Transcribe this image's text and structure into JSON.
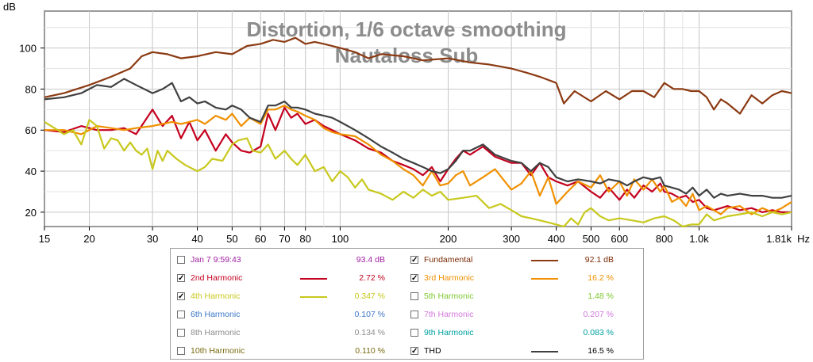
{
  "colors": {
    "fundamental": "#8b3a12",
    "h2": "#c4001e",
    "h3": "#f09000",
    "h4": "#c8c81e",
    "h5": "#7fc832",
    "h6": "#3c78c8",
    "h7": "#d278dc",
    "h8": "#8c8c8c",
    "h9": "#00a0a0",
    "h10": "#7a6a10",
    "thd": "#404040",
    "timestamp": "#a020a0"
  },
  "chart_data": {
    "type": "line",
    "title": "Distortion, 1/6 octave smoothing",
    "subtitle": "Nautaloss Sub",
    "ylabel": "dB",
    "xunit": "Hz",
    "xscale": "log",
    "xlim": [
      15,
      1810
    ],
    "ylim": [
      13,
      118
    ],
    "grid": true,
    "x_tick_labels": [
      "15",
      "20",
      "30",
      "40",
      "50",
      "60",
      "70",
      "80",
      "100",
      "200",
      "300",
      "400",
      "500",
      "600",
      "800",
      "1.0k",
      "1.81k"
    ],
    "x_tick_values": [
      15,
      20,
      30,
      40,
      50,
      60,
      70,
      80,
      100,
      200,
      300,
      400,
      500,
      600,
      800,
      1000,
      1810
    ],
    "y_tick_labels": [
      "20",
      "40",
      "60",
      "80",
      "100"
    ],
    "y_tick_values": [
      20,
      40,
      60,
      80,
      100
    ],
    "series": [
      {
        "name": "Fundamental",
        "color_key": "fundamental",
        "x": [
          15,
          17,
          20,
          23,
          26,
          28,
          30,
          33,
          36,
          40,
          45,
          50,
          55,
          60,
          65,
          70,
          75,
          80,
          85,
          90,
          100,
          110,
          120,
          130,
          150,
          170,
          200,
          230,
          260,
          300,
          330,
          360,
          400,
          420,
          450,
          500,
          550,
          600,
          650,
          700,
          750,
          800,
          850,
          900,
          950,
          1000,
          1050,
          1100,
          1150,
          1200,
          1300,
          1400,
          1500,
          1600,
          1700,
          1810
        ],
        "y": [
          76,
          78,
          82,
          86,
          90,
          96,
          98,
          97,
          95,
          96,
          98,
          97,
          101,
          102,
          104,
          103,
          105,
          102,
          103,
          102,
          100,
          98,
          95,
          97,
          96,
          94,
          95,
          93,
          92,
          90,
          88,
          86,
          83,
          73,
          79,
          74,
          79,
          75,
          79,
          79,
          76,
          83,
          80,
          80,
          79,
          79,
          76,
          70,
          75,
          73,
          68,
          77,
          73,
          77,
          79,
          78
        ]
      },
      {
        "name": "2nd Harmonic",
        "color_key": "h2",
        "x": [
          15,
          17,
          19,
          21,
          23,
          25,
          27,
          30,
          32,
          34,
          36,
          38,
          40,
          42,
          45,
          48,
          50,
          53,
          56,
          60,
          63,
          66,
          70,
          73,
          76,
          80,
          85,
          90,
          95,
          100,
          110,
          120,
          130,
          140,
          150,
          160,
          170,
          180,
          190,
          200,
          210,
          220,
          230,
          250,
          270,
          300,
          320,
          340,
          360,
          380,
          400,
          430,
          460,
          500,
          530,
          560,
          600,
          630,
          660,
          700,
          740,
          780,
          800,
          840,
          880,
          920,
          960,
          1000,
          1050,
          1100,
          1150,
          1200,
          1300,
          1400,
          1500,
          1600,
          1700,
          1810
        ],
        "y": [
          60,
          59,
          62,
          60,
          60,
          61,
          58,
          70,
          62,
          67,
          56,
          64,
          55,
          60,
          50,
          58,
          54,
          50,
          49,
          52,
          68,
          60,
          71,
          66,
          68,
          63,
          65,
          62,
          60,
          58,
          55,
          51,
          49,
          45,
          43,
          41,
          38,
          42,
          35,
          41,
          46,
          50,
          48,
          52,
          47,
          44,
          44,
          38,
          44,
          37,
          35,
          33,
          35,
          30,
          27,
          32,
          26,
          31,
          27,
          33,
          30,
          34,
          30,
          29,
          27,
          28,
          25,
          26,
          22,
          21,
          22,
          23,
          21,
          22,
          20,
          21,
          20,
          20
        ]
      },
      {
        "name": "3rd Harmonic",
        "color_key": "h3",
        "x": [
          15,
          17,
          19,
          21,
          23,
          25,
          27,
          30,
          32,
          34,
          36,
          38,
          40,
          42,
          45,
          48,
          50,
          53,
          56,
          60,
          63,
          66,
          70,
          73,
          76,
          80,
          85,
          90,
          95,
          100,
          110,
          120,
          130,
          140,
          150,
          160,
          170,
          180,
          190,
          200,
          210,
          220,
          230,
          250,
          270,
          300,
          320,
          340,
          360,
          380,
          400,
          430,
          460,
          500,
          530,
          560,
          600,
          630,
          660,
          700,
          740,
          780,
          800,
          840,
          880,
          920,
          960,
          1000,
          1050,
          1100,
          1150,
          1200,
          1300,
          1400,
          1500,
          1600,
          1700,
          1810
        ],
        "y": [
          60,
          60,
          58,
          62,
          61,
          60,
          61,
          62,
          63,
          64,
          63,
          64,
          65,
          63,
          67,
          65,
          68,
          62,
          66,
          63,
          70,
          70,
          72,
          70,
          69,
          67,
          65,
          61,
          59,
          58,
          57,
          53,
          48,
          45,
          41,
          38,
          33,
          40,
          33,
          34,
          38,
          40,
          33,
          37,
          41,
          31,
          34,
          40,
          28,
          37,
          24,
          30,
          35,
          32,
          38,
          30,
          35,
          28,
          36,
          31,
          36,
          30,
          33,
          25,
          27,
          23,
          29,
          21,
          23,
          21,
          19,
          22,
          23,
          19,
          22,
          20,
          22,
          25
        ]
      },
      {
        "name": "4th Harmonic",
        "color_key": "h4",
        "x": [
          15,
          16,
          17,
          18,
          19,
          20,
          21,
          22,
          23,
          24,
          25,
          26,
          27,
          28,
          29,
          30,
          31,
          32,
          33,
          35,
          37,
          40,
          42,
          44,
          47,
          50,
          52,
          55,
          57,
          60,
          63,
          66,
          70,
          73,
          76,
          80,
          85,
          90,
          95,
          100,
          105,
          110,
          115,
          120,
          130,
          140,
          150,
          160,
          170,
          180,
          190,
          200,
          220,
          240,
          260,
          280,
          300,
          320,
          340,
          360,
          380,
          400,
          420,
          440,
          460,
          480,
          500,
          530,
          560,
          600,
          650,
          700,
          750,
          800,
          850,
          900,
          950,
          1000,
          1050,
          1100,
          1200,
          1300,
          1400,
          1500,
          1600,
          1700,
          1810
        ],
        "y": [
          64,
          61,
          58,
          60,
          53,
          65,
          62,
          51,
          56,
          55,
          50,
          54,
          50,
          48,
          51,
          41,
          50,
          45,
          50,
          46,
          43,
          40,
          42,
          46,
          45,
          53,
          55,
          56,
          50,
          49,
          53,
          46,
          50,
          46,
          43,
          48,
          40,
          42,
          35,
          40,
          37,
          32,
          36,
          31,
          29,
          26,
          30,
          27,
          31,
          28,
          30,
          26,
          27,
          28,
          22,
          24,
          21,
          18,
          17,
          16,
          15,
          14,
          13,
          17,
          14,
          20,
          22,
          18,
          16,
          17,
          16,
          15,
          17,
          18,
          16,
          13,
          14,
          14,
          19,
          16,
          18,
          19,
          20,
          18,
          20,
          19,
          20
        ]
      },
      {
        "name": "THD",
        "color_key": "thd",
        "x": [
          15,
          17,
          19,
          21,
          23,
          25,
          27,
          30,
          32,
          34,
          36,
          38,
          40,
          42,
          45,
          48,
          50,
          53,
          56,
          60,
          63,
          66,
          70,
          73,
          76,
          80,
          85,
          90,
          95,
          100,
          110,
          120,
          130,
          140,
          150,
          160,
          170,
          180,
          190,
          200,
          210,
          220,
          230,
          250,
          270,
          300,
          320,
          340,
          360,
          380,
          400,
          430,
          460,
          500,
          530,
          560,
          600,
          630,
          660,
          700,
          740,
          780,
          800,
          840,
          880,
          920,
          960,
          1000,
          1050,
          1100,
          1150,
          1200,
          1300,
          1400,
          1500,
          1600,
          1700,
          1810
        ],
        "y": [
          75,
          76,
          78,
          82,
          81,
          85,
          82,
          78,
          80,
          83,
          74,
          76,
          73,
          74,
          71,
          70,
          72,
          70,
          66,
          64,
          72,
          72,
          74,
          71,
          71,
          70,
          68,
          67,
          66,
          64,
          60,
          56,
          52,
          49,
          46,
          44,
          42,
          40,
          39,
          41,
          45,
          50,
          50,
          53,
          48,
          45,
          44,
          40,
          44,
          42,
          37,
          35,
          36,
          35,
          34,
          36,
          35,
          33,
          35,
          37,
          36,
          37,
          33,
          32,
          31,
          29,
          32,
          28,
          31,
          27,
          29,
          28,
          29,
          28,
          28,
          27,
          27,
          28
        ]
      }
    ]
  },
  "legend": {
    "timestamp": {
      "label": "Jan 7 9:59:43",
      "value": "93.4 dB",
      "checked": false
    },
    "items": [
      {
        "label": "Fundamental",
        "value": "92.1 dB",
        "checked": true,
        "color_key": "fundamental",
        "show_line": true
      },
      {
        "label": "2nd Harmonic",
        "value": "2.72 %",
        "checked": true,
        "color_key": "h2",
        "show_line": true
      },
      {
        "label": "3rd Harmonic",
        "value": "16.2 %",
        "checked": true,
        "color_key": "h3",
        "show_line": true
      },
      {
        "label": "4th Harmonic",
        "value": "0.347 %",
        "checked": true,
        "color_key": "h4",
        "show_line": true
      },
      {
        "label": "5th Harmonic",
        "value": "1.48 %",
        "checked": false,
        "color_key": "h5",
        "show_line": false
      },
      {
        "label": "6th Harmonic",
        "value": "0.107 %",
        "checked": false,
        "color_key": "h6",
        "show_line": false
      },
      {
        "label": "7th Harmonic",
        "value": "0.207 %",
        "checked": false,
        "color_key": "h7",
        "show_line": false
      },
      {
        "label": "8th Harmonic",
        "value": "0.134 %",
        "checked": false,
        "color_key": "h8",
        "show_line": false
      },
      {
        "label": "9th Harmonic",
        "value": "0.083 %",
        "checked": false,
        "color_key": "h9",
        "show_line": false
      },
      {
        "label": "10th Harmonic",
        "value": "0.110 %",
        "checked": false,
        "color_key": "h10",
        "show_line": false
      },
      {
        "label": "THD",
        "value": "16.5 %",
        "checked": true,
        "color_key": "thd",
        "show_line": true
      }
    ]
  }
}
